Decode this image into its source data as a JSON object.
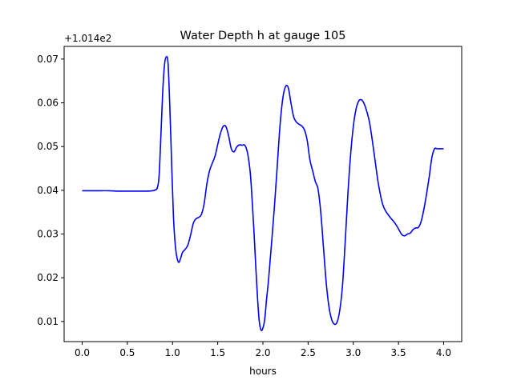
{
  "chart_data": {
    "type": "line",
    "title": "Water Depth h at gauge 105",
    "xlabel": "hours",
    "ylabel": "",
    "offset_label": "+1.014e2",
    "xlim": [
      -0.2,
      4.2
    ],
    "ylim": [
      0.0054,
      0.0729
    ],
    "x_ticks": [
      0.0,
      0.5,
      1.0,
      1.5,
      2.0,
      2.5,
      3.0,
      3.5,
      4.0
    ],
    "x_tick_labels": [
      "0.0",
      "0.5",
      "1.0",
      "1.5",
      "2.0",
      "2.5",
      "3.0",
      "3.5",
      "4.0"
    ],
    "y_ticks": [
      0.01,
      0.02,
      0.03,
      0.04,
      0.05,
      0.06,
      0.07
    ],
    "y_tick_labels": [
      "0.01",
      "0.02",
      "0.03",
      "0.04",
      "0.05",
      "0.06",
      "0.07"
    ],
    "grid": false,
    "legend": "none",
    "series": [
      {
        "color": "#0000ff",
        "x": [
          0.0,
          0.1,
          0.2,
          0.3,
          0.4,
          0.5,
          0.6,
          0.7,
          0.78,
          0.81,
          0.83,
          0.85,
          0.87,
          0.89,
          0.91,
          0.93,
          0.95,
          0.97,
          0.99,
          1.01,
          1.03,
          1.05,
          1.07,
          1.09,
          1.11,
          1.14,
          1.17,
          1.2,
          1.23,
          1.26,
          1.29,
          1.32,
          1.35,
          1.38,
          1.41,
          1.44,
          1.47,
          1.5,
          1.53,
          1.56,
          1.59,
          1.62,
          1.65,
          1.68,
          1.71,
          1.74,
          1.77,
          1.8,
          1.83,
          1.86,
          1.88,
          1.9,
          1.92,
          1.94,
          1.96,
          1.98,
          2.0,
          2.02,
          2.04,
          2.06,
          2.08,
          2.1,
          2.13,
          2.16,
          2.19,
          2.22,
          2.25,
          2.28,
          2.31,
          2.34,
          2.37,
          2.4,
          2.43,
          2.46,
          2.49,
          2.52,
          2.55,
          2.58,
          2.61,
          2.64,
          2.67,
          2.7,
          2.73,
          2.76,
          2.79,
          2.82,
          2.85,
          2.88,
          2.91,
          2.94,
          2.97,
          3.0,
          3.03,
          3.06,
          3.09,
          3.12,
          3.15,
          3.18,
          3.21,
          3.24,
          3.27,
          3.3,
          3.33,
          3.36,
          3.39,
          3.42,
          3.45,
          3.48,
          3.51,
          3.54,
          3.57,
          3.6,
          3.63,
          3.66,
          3.69,
          3.72,
          3.75,
          3.78,
          3.81,
          3.84,
          3.87,
          3.9,
          3.93,
          3.96,
          4.0
        ],
        "y": [
          0.0399,
          0.0399,
          0.0399,
          0.0399,
          0.0398,
          0.0398,
          0.0398,
          0.0398,
          0.0399,
          0.0401,
          0.0405,
          0.043,
          0.052,
          0.062,
          0.0685,
          0.0705,
          0.069,
          0.059,
          0.046,
          0.034,
          0.0275,
          0.0245,
          0.0235,
          0.0245,
          0.0258,
          0.0265,
          0.0275,
          0.0298,
          0.0325,
          0.0335,
          0.0338,
          0.0345,
          0.037,
          0.0415,
          0.0445,
          0.0462,
          0.0478,
          0.0505,
          0.053,
          0.0546,
          0.0546,
          0.0525,
          0.0495,
          0.0488,
          0.0499,
          0.0504,
          0.0503,
          0.0503,
          0.0485,
          0.044,
          0.038,
          0.031,
          0.023,
          0.0155,
          0.01,
          0.008,
          0.0085,
          0.0105,
          0.015,
          0.019,
          0.024,
          0.029,
          0.037,
          0.046,
          0.055,
          0.061,
          0.0637,
          0.0635,
          0.06,
          0.0568,
          0.0556,
          0.0551,
          0.0547,
          0.0538,
          0.0514,
          0.047,
          0.0445,
          0.042,
          0.0403,
          0.035,
          0.027,
          0.019,
          0.0135,
          0.0105,
          0.0094,
          0.0098,
          0.0125,
          0.018,
          0.028,
          0.039,
          0.048,
          0.0545,
          0.0585,
          0.0604,
          0.0607,
          0.0598,
          0.058,
          0.0555,
          0.0515,
          0.047,
          0.0425,
          0.039,
          0.0365,
          0.0352,
          0.0343,
          0.0335,
          0.0328,
          0.0319,
          0.0308,
          0.0298,
          0.0296,
          0.03,
          0.0302,
          0.031,
          0.0314,
          0.0315,
          0.0328,
          0.0355,
          0.039,
          0.043,
          0.0475,
          0.0495,
          0.0495,
          0.0495,
          0.0495
        ]
      }
    ]
  }
}
